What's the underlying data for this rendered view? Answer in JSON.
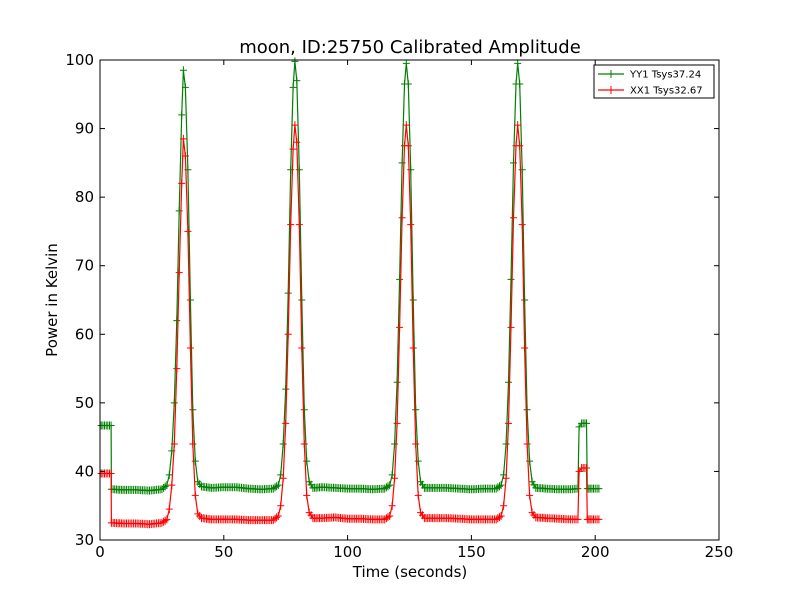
{
  "chart_data": {
    "type": "line",
    "title": "moon, ID:25750 Calibrated Amplitude",
    "xlabel": "Time (seconds)",
    "ylabel": "Power in Kelvin",
    "xlim": [
      0,
      250
    ],
    "ylim": [
      30,
      100
    ],
    "xticks": [
      0,
      50,
      100,
      150,
      200,
      250
    ],
    "yticks": [
      30,
      40,
      50,
      60,
      70,
      80,
      90,
      100
    ],
    "grid": false,
    "legend_position": "top-right",
    "marker": "plus",
    "series": [
      {
        "name": "YY1 Tsys37.24",
        "color": "#008000",
        "points": [
          [
            0.5,
            46.7
          ],
          [
            4.5,
            46.7
          ],
          [
            4.6,
            37.4
          ],
          [
            10,
            37.3
          ],
          [
            15,
            37.3
          ],
          [
            20,
            37.2
          ],
          [
            25,
            37.4
          ],
          [
            27,
            38.0
          ],
          [
            28,
            39.5
          ],
          [
            29,
            43.0
          ],
          [
            30,
            50.0
          ],
          [
            31,
            62.0
          ],
          [
            32,
            78.0
          ],
          [
            33,
            92.0
          ],
          [
            33.7,
            98.5
          ],
          [
            34.5,
            96.0
          ],
          [
            35.5,
            84.0
          ],
          [
            36.5,
            65.0
          ],
          [
            37.5,
            49.0
          ],
          [
            38.5,
            41.5
          ],
          [
            39.5,
            38.5
          ],
          [
            41,
            37.8
          ],
          [
            45,
            37.6
          ],
          [
            50,
            37.7
          ],
          [
            55,
            37.7
          ],
          [
            60,
            37.5
          ],
          [
            65,
            37.4
          ],
          [
            70,
            37.5
          ],
          [
            72,
            38.0
          ],
          [
            73,
            39.5
          ],
          [
            74,
            44.0
          ],
          [
            75,
            52.0
          ],
          [
            76,
            66.0
          ],
          [
            77,
            84.0
          ],
          [
            78,
            96.0
          ],
          [
            78.7,
            99.8
          ],
          [
            79.5,
            97.0
          ],
          [
            80.5,
            84.0
          ],
          [
            81.5,
            65.0
          ],
          [
            82.5,
            49.0
          ],
          [
            83.5,
            41.5
          ],
          [
            84.5,
            38.5
          ],
          [
            86,
            37.6
          ],
          [
            90,
            37.7
          ],
          [
            95,
            37.6
          ],
          [
            100,
            37.5
          ],
          [
            105,
            37.5
          ],
          [
            110,
            37.4
          ],
          [
            115,
            37.5
          ],
          [
            117,
            38.0
          ],
          [
            118,
            39.5
          ],
          [
            119,
            44.0
          ],
          [
            120,
            53.0
          ],
          [
            121,
            68.0
          ],
          [
            122,
            85.0
          ],
          [
            123,
            96.5
          ],
          [
            123.7,
            99.5
          ],
          [
            124.5,
            96.5
          ],
          [
            125.5,
            84.0
          ],
          [
            126.5,
            65.0
          ],
          [
            127.5,
            49.0
          ],
          [
            128.5,
            41.5
          ],
          [
            129.5,
            38.5
          ],
          [
            131,
            37.6
          ],
          [
            135,
            37.6
          ],
          [
            140,
            37.6
          ],
          [
            145,
            37.5
          ],
          [
            150,
            37.4
          ],
          [
            155,
            37.5
          ],
          [
            160,
            37.5
          ],
          [
            162,
            38.0
          ],
          [
            163,
            39.5
          ],
          [
            164,
            44.0
          ],
          [
            165,
            53.0
          ],
          [
            166,
            68.0
          ],
          [
            167,
            85.0
          ],
          [
            168,
            96.5
          ],
          [
            168.7,
            99.5
          ],
          [
            169.5,
            96.5
          ],
          [
            170.5,
            84.0
          ],
          [
            171.5,
            65.0
          ],
          [
            172.5,
            49.0
          ],
          [
            173.5,
            41.5
          ],
          [
            174.5,
            38.5
          ],
          [
            176,
            37.6
          ],
          [
            180,
            37.5
          ],
          [
            185,
            37.4
          ],
          [
            190,
            37.4
          ],
          [
            193,
            37.5
          ],
          [
            193.5,
            46.5
          ],
          [
            194.5,
            47.0
          ],
          [
            196.5,
            47.0
          ],
          [
            196.8,
            37.5
          ],
          [
            198,
            37.5
          ],
          [
            200,
            37.5
          ],
          [
            201.5,
            37.5
          ]
        ]
      },
      {
        "name": "XX1 Tsys32.67",
        "color": "#ff0000",
        "points": [
          [
            0.5,
            39.7
          ],
          [
            4.5,
            39.7
          ],
          [
            4.6,
            32.5
          ],
          [
            10,
            32.4
          ],
          [
            15,
            32.4
          ],
          [
            20,
            32.3
          ],
          [
            25,
            32.5
          ],
          [
            27,
            33.0
          ],
          [
            28,
            34.5
          ],
          [
            29,
            38.0
          ],
          [
            30,
            44.0
          ],
          [
            31,
            55.0
          ],
          [
            32,
            69.0
          ],
          [
            33,
            82.0
          ],
          [
            33.7,
            88.5
          ],
          [
            34.5,
            86.0
          ],
          [
            35.5,
            75.0
          ],
          [
            36.5,
            58.0
          ],
          [
            37.5,
            44.0
          ],
          [
            38.5,
            36.5
          ],
          [
            39.5,
            33.8
          ],
          [
            41,
            33.2
          ],
          [
            45,
            33.0
          ],
          [
            50,
            33.0
          ],
          [
            55,
            33.0
          ],
          [
            60,
            32.9
          ],
          [
            65,
            32.9
          ],
          [
            70,
            32.9
          ],
          [
            72,
            33.5
          ],
          [
            73,
            35.0
          ],
          [
            74,
            39.0
          ],
          [
            75,
            47.0
          ],
          [
            76,
            60.0
          ],
          [
            77,
            76.0
          ],
          [
            78,
            87.0
          ],
          [
            78.7,
            90.5
          ],
          [
            79.5,
            88.0
          ],
          [
            80.5,
            76.0
          ],
          [
            81.5,
            58.0
          ],
          [
            82.5,
            44.0
          ],
          [
            83.5,
            36.5
          ],
          [
            84.5,
            34.0
          ],
          [
            86,
            33.2
          ],
          [
            90,
            33.2
          ],
          [
            95,
            33.3
          ],
          [
            100,
            33.1
          ],
          [
            105,
            33.1
          ],
          [
            110,
            33.0
          ],
          [
            115,
            33.0
          ],
          [
            117,
            33.5
          ],
          [
            118,
            35.0
          ],
          [
            119,
            39.0
          ],
          [
            120,
            47.0
          ],
          [
            121,
            61.0
          ],
          [
            122,
            77.0
          ],
          [
            123,
            87.5
          ],
          [
            123.7,
            90.5
          ],
          [
            124.5,
            87.5
          ],
          [
            125.5,
            76.0
          ],
          [
            126.5,
            58.0
          ],
          [
            127.5,
            44.0
          ],
          [
            128.5,
            36.5
          ],
          [
            129.5,
            34.0
          ],
          [
            131,
            33.2
          ],
          [
            135,
            33.2
          ],
          [
            140,
            33.2
          ],
          [
            145,
            33.1
          ],
          [
            150,
            33.0
          ],
          [
            155,
            33.0
          ],
          [
            160,
            33.0
          ],
          [
            162,
            33.5
          ],
          [
            163,
            35.0
          ],
          [
            164,
            39.0
          ],
          [
            165,
            47.0
          ],
          [
            166,
            61.0
          ],
          [
            167,
            77.0
          ],
          [
            168,
            87.5
          ],
          [
            168.7,
            90.5
          ],
          [
            169.5,
            87.5
          ],
          [
            170.5,
            76.0
          ],
          [
            171.5,
            58.0
          ],
          [
            172.5,
            44.0
          ],
          [
            173.5,
            36.5
          ],
          [
            174.5,
            34.0
          ],
          [
            176,
            33.3
          ],
          [
            180,
            33.2
          ],
          [
            185,
            33.1
          ],
          [
            190,
            33.0
          ],
          [
            193,
            33.0
          ],
          [
            193.5,
            40.0
          ],
          [
            194.5,
            40.5
          ],
          [
            196.5,
            40.5
          ],
          [
            196.8,
            33.0
          ],
          [
            198,
            33.0
          ],
          [
            200,
            33.0
          ],
          [
            201.5,
            33.0
          ]
        ]
      }
    ]
  }
}
